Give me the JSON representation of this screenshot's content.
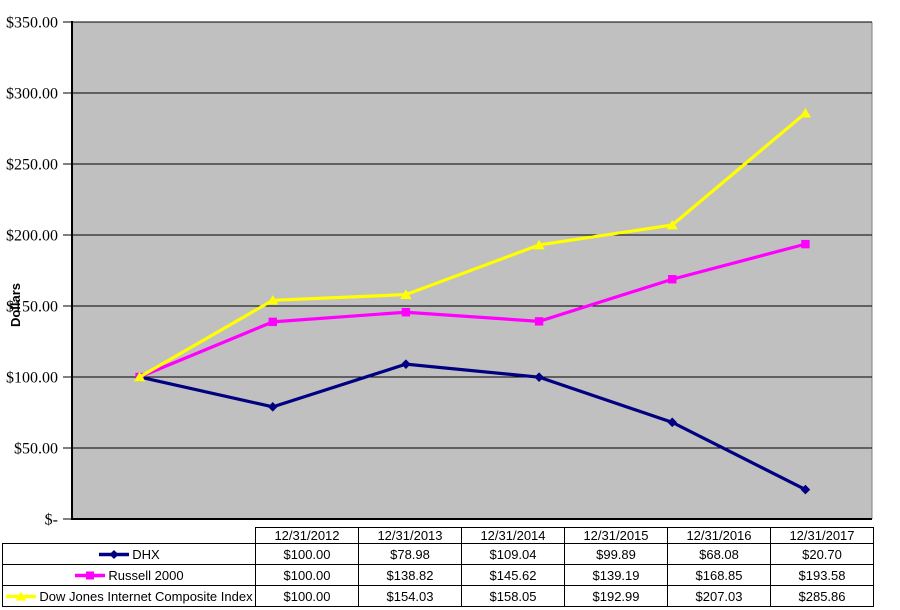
{
  "chart_data": {
    "type": "line",
    "title": "",
    "ylabel": "Dollars",
    "xlabel": "",
    "ylim": [
      0,
      350
    ],
    "grid": "horizontal",
    "plot_bg_color": "#C0C0C0",
    "gridline_color": "#000000",
    "legend_position": "table-left-column",
    "categories": [
      "12/31/2012",
      "12/31/2013",
      "12/31/2014",
      "12/31/2015",
      "12/31/2016",
      "12/31/2017"
    ],
    "y_ticks": [
      {
        "value": 350,
        "label": "$350.00"
      },
      {
        "value": 300,
        "label": "$300.00"
      },
      {
        "value": 250,
        "label": "$250.00"
      },
      {
        "value": 200,
        "label": "$200.00"
      },
      {
        "value": 150,
        "label": "$150.00"
      },
      {
        "value": 100,
        "label": "$100.00"
      },
      {
        "value": 50,
        "label": "$50.00"
      },
      {
        "value": 0,
        "label": "$-"
      }
    ],
    "series": [
      {
        "name": "DHX",
        "color": "#000080",
        "marker": "diamond",
        "values": [
          100.0,
          78.98,
          109.04,
          99.89,
          68.08,
          20.7
        ],
        "display_values": [
          "$100.00",
          "$78.98",
          "$109.04",
          "$99.89",
          "$68.08",
          "$20.70"
        ]
      },
      {
        "name": "Russell 2000",
        "color": "#FF00FF",
        "marker": "square",
        "values": [
          100.0,
          138.82,
          145.62,
          139.19,
          168.85,
          193.58
        ],
        "display_values": [
          "$100.00",
          "$138.82",
          "$145.62",
          "$139.19",
          "$168.85",
          "$193.58"
        ]
      },
      {
        "name": "Dow Jones Internet Composite Index",
        "color": "#FFFF00",
        "marker": "triangle",
        "values": [
          100.0,
          154.03,
          158.05,
          192.99,
          207.03,
          285.86
        ],
        "display_values": [
          "$100.00",
          "$154.03",
          "$158.05",
          "$192.99",
          "$207.03",
          "$285.86"
        ]
      }
    ]
  }
}
